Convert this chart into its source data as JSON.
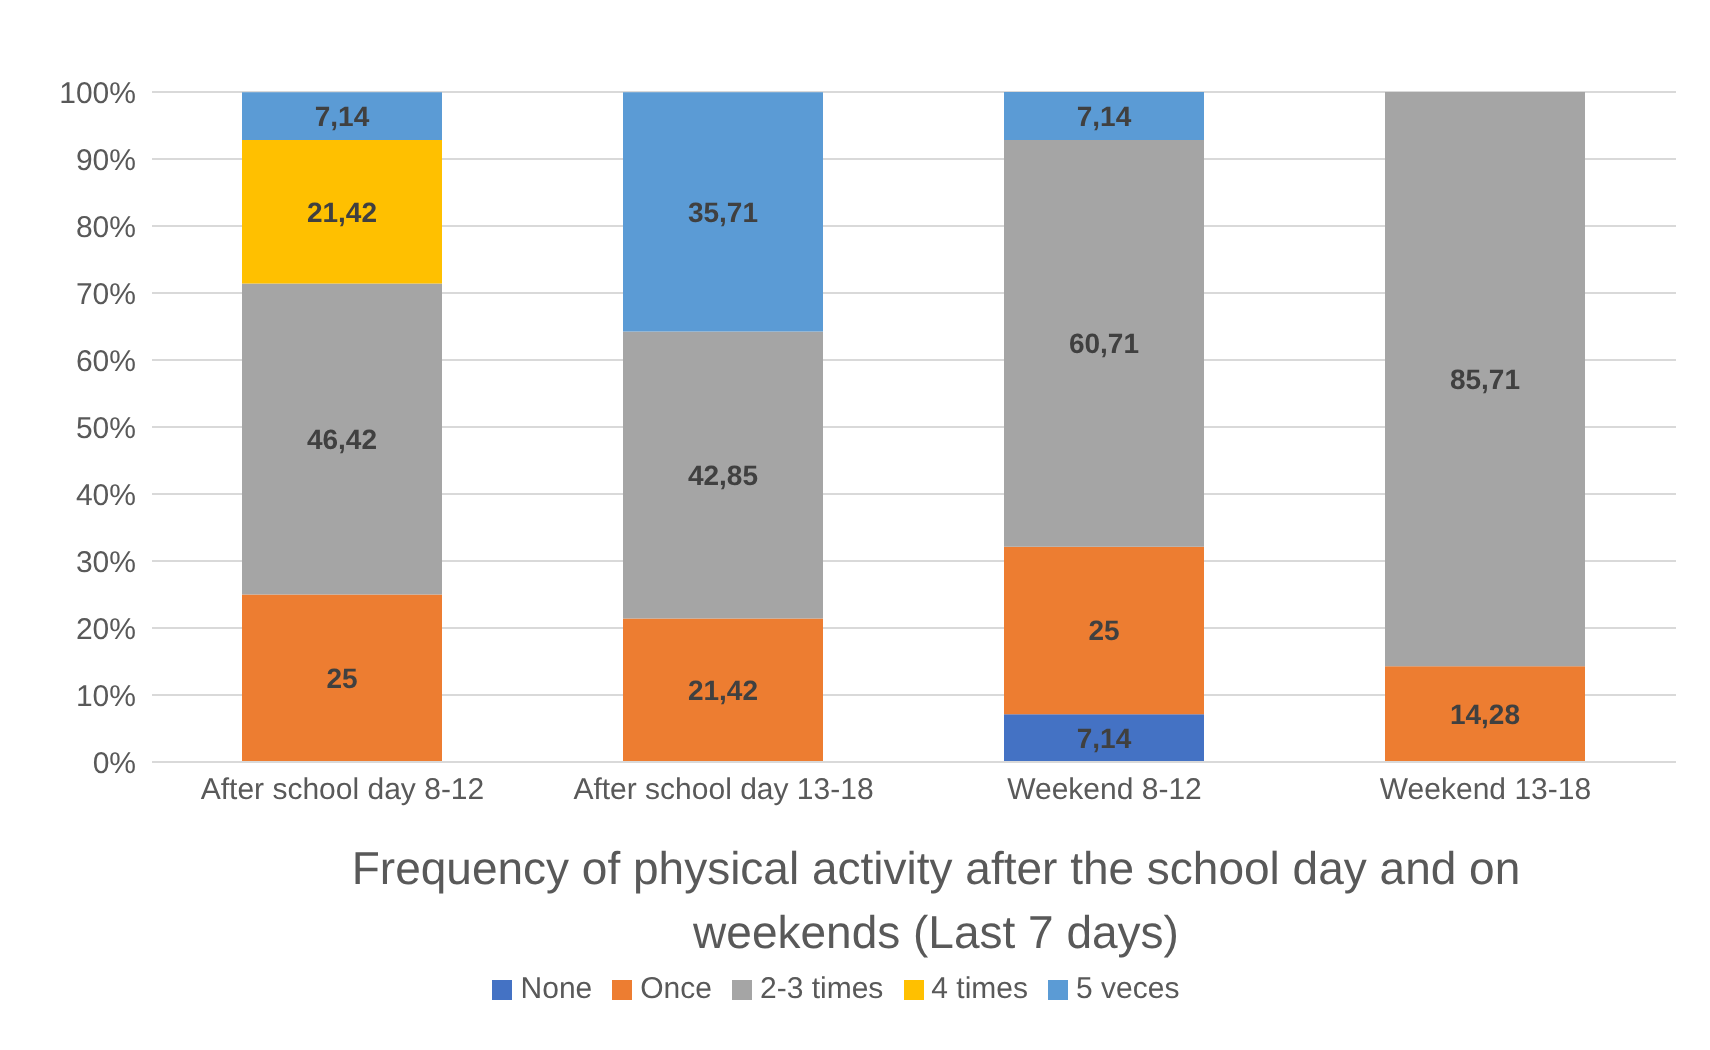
{
  "chart_data": {
    "type": "bar",
    "stacked": true,
    "title": "Frequency of physical activity after the school day and on weekends (Last 7 days)",
    "categories": [
      "After school day 8-12",
      "After school day 13-18",
      "Weekend 8-12",
      "Weekend 13-18"
    ],
    "series": [
      {
        "name": "None",
        "color": "#4472c4",
        "values": [
          null,
          null,
          7.14,
          null
        ],
        "value_labels": [
          null,
          null,
          "7,14",
          null
        ]
      },
      {
        "name": "Once",
        "color": "#ed7d31",
        "values": [
          25,
          21.42,
          25,
          14.28
        ],
        "value_labels": [
          "25",
          "21,42",
          "25",
          "14,28"
        ]
      },
      {
        "name": "2-3 times",
        "color": "#a5a5a5",
        "values": [
          46.42,
          42.85,
          60.71,
          85.71
        ],
        "value_labels": [
          "46,42",
          "42,85",
          "60,71",
          "85,71"
        ]
      },
      {
        "name": "4 times",
        "color": "#ffc000",
        "values": [
          21.42,
          null,
          null,
          null
        ],
        "value_labels": [
          "21,42",
          null,
          null,
          null
        ]
      },
      {
        "name": "5 veces",
        "color": "#5b9bd5",
        "values": [
          7.14,
          35.71,
          7.14,
          null
        ],
        "value_labels": [
          "7,14",
          "35,71",
          "7,14",
          null
        ]
      }
    ],
    "ylim": [
      0,
      100
    ],
    "yticks": [
      {
        "value": 0,
        "label": "0%"
      },
      {
        "value": 10,
        "label": "10%"
      },
      {
        "value": 20,
        "label": "20%"
      },
      {
        "value": 30,
        "label": "30%"
      },
      {
        "value": 40,
        "label": "40%"
      },
      {
        "value": 50,
        "label": "50%"
      },
      {
        "value": 60,
        "label": "60%"
      },
      {
        "value": 70,
        "label": "70%"
      },
      {
        "value": 80,
        "label": "80%"
      },
      {
        "value": 90,
        "label": "90%"
      },
      {
        "value": 100,
        "label": "100%"
      }
    ],
    "grid": "y",
    "legend": "bottom"
  }
}
